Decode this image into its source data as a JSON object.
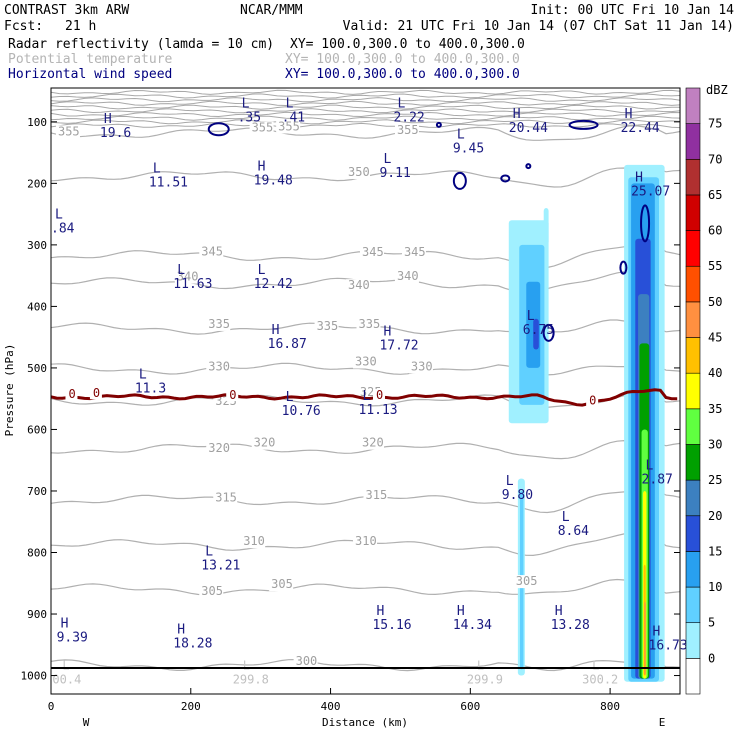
{
  "header": {
    "model": "CONTRAST  3km ARW",
    "org": "NCAR/MMM",
    "init": "Init: 00 UTC Fri 10 Jan 14",
    "fcst_label": "Fcst:",
    "fcst_value": "21 h",
    "valid": "Valid: 21 UTC Fri 10 Jan 14 (07 ChT Sat 11 Jan 14)",
    "fields": [
      {
        "name": "Radar reflectivity (lamda = 10 cm)",
        "xy": "XY= 100.0,300.0 to 400.0,300.0",
        "color": "#000000"
      },
      {
        "name": "Potential temperature",
        "xy": "XY= 100.0,300.0 to 400.0,300.0",
        "color": "#b4b4b4"
      },
      {
        "name": "Horizontal wind speed",
        "xy": "XY= 100.0,300.0 to 400.0,300.0",
        "color": "#000080"
      }
    ]
  },
  "chart_data": {
    "type": "cross-section",
    "xlabel": "Distance (km)",
    "ylabel": "Pressure (hPa)",
    "xlim": [
      0,
      900
    ],
    "ylim": [
      1030,
      45
    ],
    "xticks": [
      0,
      200,
      400,
      600,
      800
    ],
    "yticks": [
      100,
      200,
      300,
      400,
      500,
      600,
      700,
      800,
      900,
      1000
    ],
    "x_end_labels": {
      "left": "W",
      "right": "E"
    },
    "colorbar": {
      "title": "dBZ",
      "levels": [
        0,
        5,
        10,
        15,
        20,
        25,
        30,
        35,
        40,
        45,
        50,
        55,
        60,
        65,
        70,
        75
      ],
      "colors": [
        "#ffffff",
        "#a0f0ff",
        "#60d0ff",
        "#28a0f0",
        "#2850d8",
        "#3c80c0",
        "#00a000",
        "#60ff40",
        "#ffff00",
        "#ffc000",
        "#ff9040",
        "#ff5000",
        "#ff0000",
        "#d00000",
        "#b03030",
        "#9030a0",
        "#c080c0"
      ]
    },
    "theta_isentropes": [
      {
        "value": 355,
        "labels": [
          {
            "x": 10,
            "p": 122
          },
          {
            "x": 287,
            "p": 116
          },
          {
            "x": 325,
            "p": 114
          },
          {
            "x": 495,
            "p": 120
          }
        ]
      },
      {
        "value": 350,
        "labels": [
          {
            "x": 425,
            "p": 188
          }
        ]
      },
      {
        "value": 345,
        "labels": [
          {
            "x": 215,
            "p": 317
          },
          {
            "x": 445,
            "p": 318
          },
          {
            "x": 505,
            "p": 318
          }
        ]
      },
      {
        "value": 340,
        "labels": [
          {
            "x": 180,
            "p": 358
          },
          {
            "x": 425,
            "p": 372
          },
          {
            "x": 495,
            "p": 357
          }
        ]
      },
      {
        "value": 335,
        "labels": [
          {
            "x": 225,
            "p": 435
          },
          {
            "x": 380,
            "p": 438
          },
          {
            "x": 440,
            "p": 435
          }
        ]
      },
      {
        "value": 330,
        "labels": [
          {
            "x": 225,
            "p": 504
          },
          {
            "x": 435,
            "p": 496
          },
          {
            "x": 515,
            "p": 504
          }
        ]
      },
      {
        "value": 325,
        "labels": [
          {
            "x": 235,
            "p": 560
          },
          {
            "x": 442,
            "p": 546
          }
        ]
      },
      {
        "value": 320,
        "labels": [
          {
            "x": 225,
            "p": 637
          },
          {
            "x": 290,
            "p": 628
          },
          {
            "x": 445,
            "p": 628
          }
        ]
      },
      {
        "value": 315,
        "labels": [
          {
            "x": 235,
            "p": 717
          },
          {
            "x": 450,
            "p": 713
          }
        ]
      },
      {
        "value": 310,
        "labels": [
          {
            "x": 275,
            "p": 788
          },
          {
            "x": 435,
            "p": 788
          }
        ]
      },
      {
        "value": 305,
        "labels": [
          {
            "x": 215,
            "p": 869
          },
          {
            "x": 315,
            "p": 858
          },
          {
            "x": 665,
            "p": 853
          }
        ]
      },
      {
        "value": 300,
        "labels": [
          {
            "x": 350,
            "p": 983
          }
        ]
      }
    ],
    "zero_isotherm_label": "0",
    "zero_isotherm_labels": [
      {
        "x": 25,
        "p": 547
      },
      {
        "x": 60,
        "p": 546
      },
      {
        "x": 255,
        "p": 549
      },
      {
        "x": 465,
        "p": 549
      },
      {
        "x": 770,
        "p": 558
      }
    ],
    "wind_speed_extrema": [
      {
        "type": "H",
        "value": "19.6",
        "x": 70,
        "p": 115
      },
      {
        "type": "L",
        "value": ".35",
        "x": 267,
        "p": 90
      },
      {
        "type": "L",
        "value": ".41",
        "x": 330,
        "p": 90
      },
      {
        "type": "L",
        "value": "2.22",
        "x": 490,
        "p": 90
      },
      {
        "type": "H",
        "value": "20.44",
        "x": 655,
        "p": 107
      },
      {
        "type": "H",
        "value": "22.44",
        "x": 815,
        "p": 107
      },
      {
        "type": "L",
        "value": "9.45",
        "x": 575,
        "p": 140
      },
      {
        "type": "L",
        "value": "9.11",
        "x": 470,
        "p": 180
      },
      {
        "type": "L",
        "value": "11.51",
        "x": 140,
        "p": 195
      },
      {
        "type": "H",
        "value": "19.48",
        "x": 290,
        "p": 192
      },
      {
        "type": "H",
        "value": "25.07",
        "x": 830,
        "p": 210
      },
      {
        "type": "L",
        "value": "11.63",
        "x": 175,
        "p": 360
      },
      {
        "type": "L",
        "value": "12.42",
        "x": 290,
        "p": 360
      },
      {
        "type": "L",
        "value": "6.75",
        "x": 675,
        "p": 435
      },
      {
        "type": "H",
        "value": "16.87",
        "x": 310,
        "p": 458
      },
      {
        "type": "H",
        "value": "17.72",
        "x": 470,
        "p": 460
      },
      {
        "type": "L",
        "value": "11.3",
        "x": 120,
        "p": 530
      },
      {
        "type": "L",
        "value": "10.76",
        "x": 330,
        "p": 567
      },
      {
        "type": "L",
        "value": "11.13",
        "x": 440,
        "p": 565
      },
      {
        "type": "L",
        "value": "2.87",
        "x": 845,
        "p": 678
      },
      {
        "type": "L",
        "value": "9.80",
        "x": 645,
        "p": 703
      },
      {
        "type": "L",
        "value": "8.64",
        "x": 725,
        "p": 762
      },
      {
        "type": "L",
        "value": "13.21",
        "x": 215,
        "p": 818
      },
      {
        "type": "H",
        "value": "15.16",
        "x": 460,
        "p": 915
      },
      {
        "type": "H",
        "value": "14.34",
        "x": 575,
        "p": 915
      },
      {
        "type": "H",
        "value": "13.28",
        "x": 715,
        "p": 915
      },
      {
        "type": "H",
        "value": "9.39",
        "x": 8,
        "p": 935
      },
      {
        "type": "H",
        "value": "18.28",
        "x": 175,
        "p": 945
      },
      {
        "type": "H",
        "value": "16.73",
        "x": 855,
        "p": 948
      },
      {
        "type": "L",
        "value": ".84",
        "x": 0,
        "p": 270
      }
    ],
    "faint_surface_labels": [
      {
        "value": "00.4",
        "x": 2,
        "p": 1013
      },
      {
        "value": "299.8",
        "x": 260,
        "p": 1013
      },
      {
        "value": "299.9",
        "x": 595,
        "p": 1013
      },
      {
        "value": "300.2",
        "x": 760,
        "p": 1013
      }
    ]
  }
}
